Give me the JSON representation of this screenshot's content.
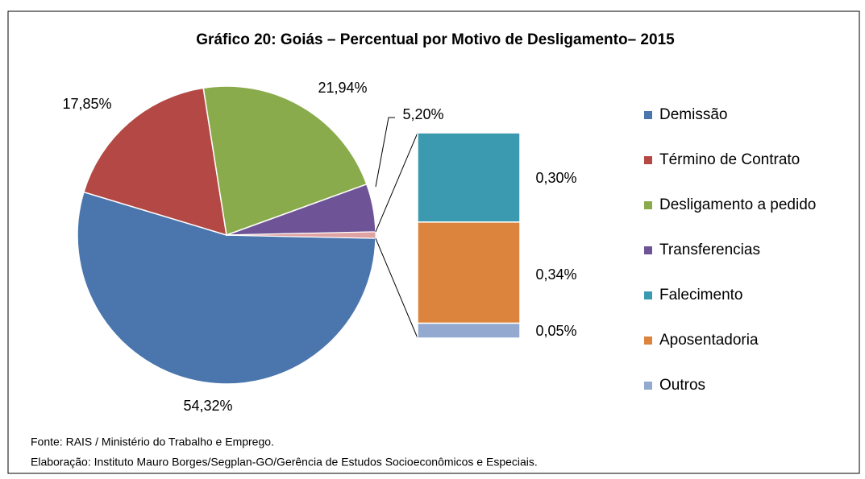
{
  "chart_data": {
    "type": "pie",
    "title": "Gráfico 20: Goiás – Percentual por Motivo de Desligamento– 2015",
    "categories": [
      "Demissão",
      "Término de Contrato",
      "Desligamento a pedido",
      "Transferencias",
      "Falecimento",
      "Aposentadoria",
      "Outros"
    ],
    "values": [
      54.32,
      17.85,
      21.94,
      5.2,
      0.3,
      0.34,
      0.05
    ],
    "value_labels": [
      "54,32%",
      "17,85%",
      "21,94%",
      "5,20%",
      "0,30%",
      "0,34%",
      "0,05%"
    ],
    "colors": [
      "#4a76ad",
      "#b34844",
      "#8aab4c",
      "#6e5496",
      "#3c9ab0",
      "#dc843e",
      "#93a9d0"
    ],
    "secondary_count": 3,
    "other_color": "#e0a3a3",
    "legend": "right",
    "notes": [
      "Fonte: RAIS / Ministério do Trabalho e Emprego.",
      "Elaboração: Instituto Mauro Borges/Segplan-GO/Gerência de Estudos Socioeconômicos e Especiais."
    ]
  }
}
